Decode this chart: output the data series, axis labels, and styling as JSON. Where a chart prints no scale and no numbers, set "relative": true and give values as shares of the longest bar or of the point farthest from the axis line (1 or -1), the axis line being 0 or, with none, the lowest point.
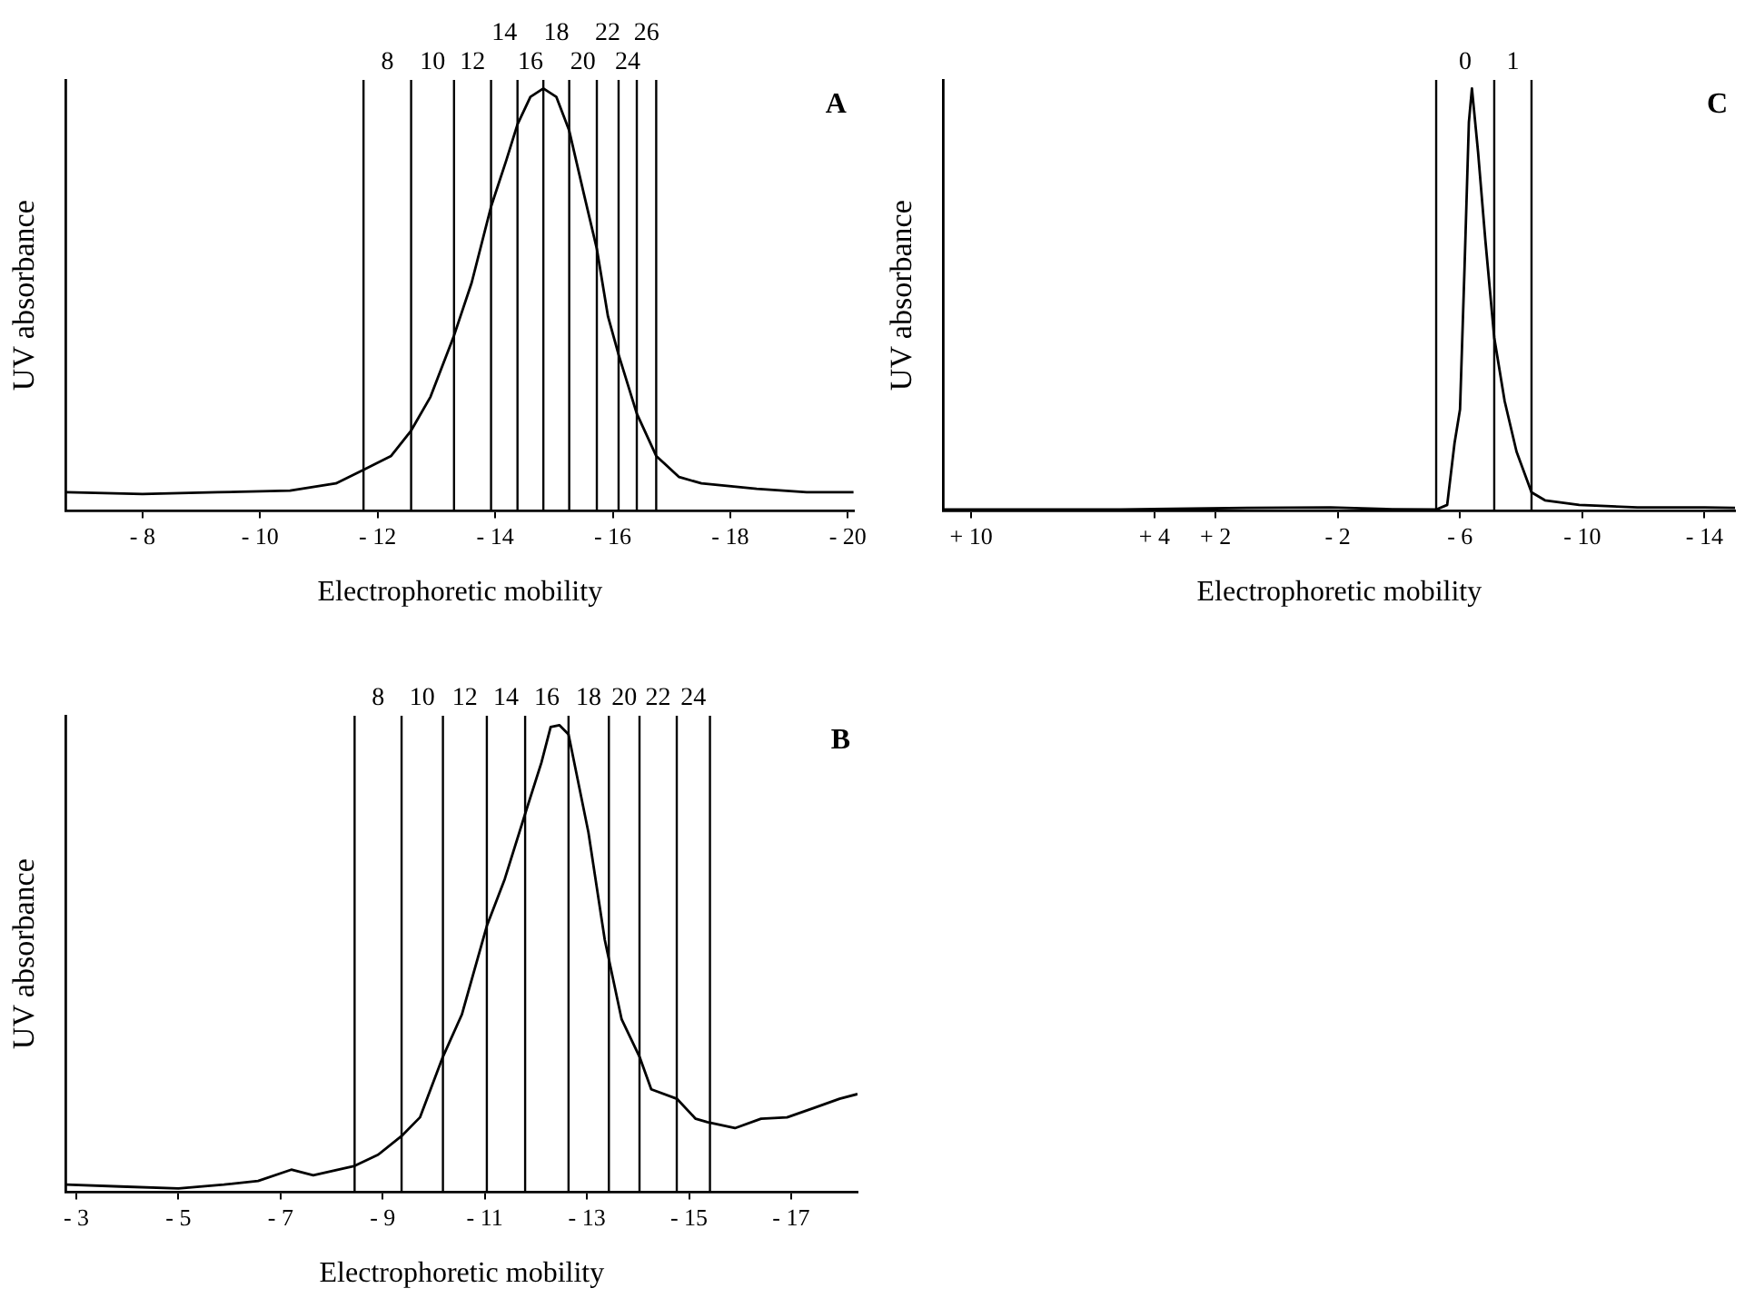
{
  "chart_data": [
    {
      "type": "line",
      "title": "A",
      "xlabel": "Electrophoretic mobility",
      "ylabel": "UV absorbance",
      "relative": true,
      "color": "#000000",
      "x": [
        -6.7,
        -8,
        -9.28,
        -10.51,
        -11.29,
        -11.76,
        -12.23,
        -12.57,
        -12.9,
        -13.3,
        -13.6,
        -13.93,
        -14.19,
        -14.38,
        -14.6,
        -14.82,
        -15.04,
        -15.26,
        -15.51,
        -15.73,
        -15.92,
        -16.1,
        -16.41,
        -16.74,
        -17.13,
        -17.51,
        -18.45,
        -19.3,
        -20.1
      ],
      "values": [
        0.044,
        0.04,
        0.044,
        0.048,
        0.065,
        0.097,
        0.13,
        0.19,
        0.27,
        0.415,
        0.54,
        0.72,
        0.83,
        0.915,
        0.98,
        1.0,
        0.98,
        0.9,
        0.75,
        0.62,
        0.46,
        0.37,
        0.23,
        0.13,
        0.08,
        0.065,
        0.052,
        0.044,
        0.044
      ],
      "xlim": [
        -6.7,
        -20.1
      ],
      "xticks": [
        {
          "value": -8,
          "label": "- 8"
        },
        {
          "value": -10,
          "label": "- 10"
        },
        {
          "value": -12,
          "label": "- 12"
        },
        {
          "value": -14,
          "label": "- 14"
        },
        {
          "value": -16,
          "label": "- 16"
        },
        {
          "value": -18,
          "label": "- 18"
        },
        {
          "value": -20,
          "label": "- 20"
        }
      ],
      "ref_lines": [
        {
          "axis": "x",
          "value": -11.76
        },
        {
          "axis": "x",
          "value": -12.57
        },
        {
          "axis": "x",
          "value": -13.3
        },
        {
          "axis": "x",
          "value": -13.93
        },
        {
          "axis": "x",
          "value": -14.38
        },
        {
          "axis": "x",
          "value": -14.82
        },
        {
          "axis": "x",
          "value": -15.26
        },
        {
          "axis": "x",
          "value": -15.73
        },
        {
          "axis": "x",
          "value": -16.1
        },
        {
          "axis": "x",
          "value": -16.41
        },
        {
          "axis": "x",
          "value": -16.74
        }
      ],
      "annotations": [
        "8",
        "10",
        "12",
        "14",
        "16",
        "18",
        "20",
        "22",
        "24",
        "26"
      ]
    },
    {
      "type": "line",
      "title": "C",
      "xlabel": "Electrophoretic mobility",
      "ylabel": "UV absorbance",
      "relative": true,
      "color": "#000000",
      "x": [
        10.9,
        5.1,
        0.98,
        -1.76,
        -3.79,
        -5.22,
        -5.58,
        -5.82,
        -6,
        -6.15,
        -6.29,
        -6.39,
        -6.59,
        -6.83,
        -7.12,
        -7.46,
        -7.85,
        -8.34,
        -8.78,
        -9.9,
        -11.81,
        -14,
        -15
      ],
      "values": [
        0.003,
        0.003,
        0.007,
        0.008,
        0.004,
        0.003,
        0.014,
        0.16,
        0.24,
        0.58,
        0.92,
        1.0,
        0.85,
        0.64,
        0.41,
        0.26,
        0.14,
        0.044,
        0.025,
        0.014,
        0.008,
        0.008,
        0.007
      ],
      "xlim": [
        10.9,
        -15
      ],
      "xticks": [
        {
          "value": 10,
          "label": "+ 10"
        },
        {
          "value": 4,
          "label": "+ 4"
        },
        {
          "value": 2,
          "label": "+ 2"
        },
        {
          "value": -2,
          "label": "- 2"
        },
        {
          "value": -6,
          "label": "- 6"
        },
        {
          "value": -10,
          "label": "- 10"
        },
        {
          "value": -14,
          "label": "- 14"
        }
      ],
      "ref_lines": [
        {
          "axis": "x",
          "value": -5.22
        },
        {
          "axis": "x",
          "value": -7.12
        },
        {
          "axis": "x",
          "value": -8.34
        }
      ],
      "annotations": [
        "0",
        "1"
      ]
    },
    {
      "type": "line",
      "title": "B",
      "xlabel": "Electrophoretic mobility",
      "ylabel": "UV absorbance",
      "relative": true,
      "color": "#000000",
      "x": [
        -2.8,
        -3.86,
        -5,
        -5.89,
        -6.56,
        -7.21,
        -7.64,
        -8.45,
        -8.91,
        -9.37,
        -9.73,
        -10.18,
        -10.55,
        -11.04,
        -11.39,
        -11.79,
        -12.11,
        -12.29,
        -12.46,
        -12.64,
        -13.03,
        -13.35,
        -13.68,
        -14.03,
        -14.26,
        -14.76,
        -15.13,
        -15.36,
        -15.9,
        -16.41,
        -16.92,
        -17.44,
        -17.95,
        -18.3
      ],
      "values": [
        0.016,
        0.012,
        0.008,
        0.016,
        0.024,
        0.048,
        0.036,
        0.056,
        0.08,
        0.12,
        0.16,
        0.29,
        0.38,
        0.57,
        0.67,
        0.81,
        0.92,
        0.996,
        1.0,
        0.98,
        0.77,
        0.54,
        0.37,
        0.29,
        0.22,
        0.2,
        0.157,
        0.15,
        0.137,
        0.157,
        0.16,
        0.18,
        0.2,
        0.21
      ],
      "xlim": [
        -2.8,
        -18.3
      ],
      "xticks": [
        {
          "value": -3,
          "label": "- 3"
        },
        {
          "value": -5,
          "label": "- 5"
        },
        {
          "value": -7,
          "label": "- 7"
        },
        {
          "value": -9,
          "label": "- 9"
        },
        {
          "value": -11,
          "label": "- 11"
        },
        {
          "value": -13,
          "label": "- 13"
        },
        {
          "value": -15,
          "label": "- 15"
        },
        {
          "value": -17,
          "label": "- 17"
        }
      ],
      "ref_lines": [
        {
          "axis": "x",
          "value": -8.45
        },
        {
          "axis": "x",
          "value": -9.37
        },
        {
          "axis": "x",
          "value": -10.18
        },
        {
          "axis": "x",
          "value": -11.04
        },
        {
          "axis": "x",
          "value": -11.79
        },
        {
          "axis": "x",
          "value": -12.64
        },
        {
          "axis": "x",
          "value": -13.43
        },
        {
          "axis": "x",
          "value": -14.03
        },
        {
          "axis": "x",
          "value": -14.76
        },
        {
          "axis": "x",
          "value": -15.41
        }
      ],
      "annotations": [
        "8",
        "10",
        "12",
        "14",
        "16",
        "18",
        "20",
        "22",
        "24"
      ]
    }
  ]
}
